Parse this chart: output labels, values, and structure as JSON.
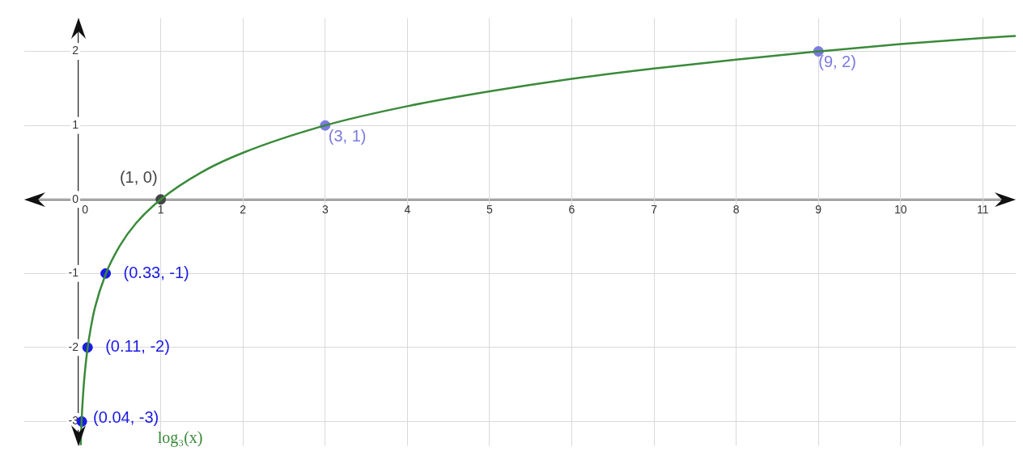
{
  "chart_data": {
    "type": "line",
    "xlim": [
      -0.66,
      11.4
    ],
    "ylim": [
      -3.33,
      2.45
    ],
    "xticks": [
      0,
      1,
      2,
      3,
      4,
      5,
      6,
      7,
      8,
      9,
      10,
      11
    ],
    "yticks": [
      -3,
      -2,
      -1,
      0,
      1,
      2
    ],
    "grid": true,
    "legend": false,
    "series": [
      {
        "name": "log₃(x)",
        "color": "#3a8a3a",
        "marker": "none",
        "x": [
          0.026,
          0.04,
          0.06,
          0.08,
          0.11,
          0.15,
          0.2,
          0.33,
          0.5,
          0.7,
          1,
          1.5,
          2,
          3,
          4,
          5,
          6,
          7,
          8,
          9,
          10,
          11,
          11.4
        ],
        "values": [
          -3.32,
          -2.93,
          -2.56,
          -2.3,
          -2.01,
          -1.73,
          -1.46,
          -1.01,
          -0.63,
          -0.32,
          0,
          0.37,
          0.63,
          1,
          1.26,
          1.46,
          1.63,
          1.77,
          1.89,
          2,
          2.1,
          2.18,
          2.21
        ]
      },
      {
        "type": "scatter",
        "marker": "circle",
        "colors": [
          "#1a1ae6",
          "#1a1ae6",
          "#1a1ae6",
          "#444444",
          "#7b7be0",
          "#7b7be0"
        ],
        "x": [
          0.04,
          0.11,
          0.33,
          1,
          3,
          9
        ],
        "values": [
          -3,
          -2,
          -1,
          0,
          1,
          2
        ]
      }
    ],
    "annotations": [
      {
        "text": "(0.04, -3)",
        "x": 0.04,
        "y": -3
      },
      {
        "text": "(0.11, -2)",
        "x": 0.11,
        "y": -2
      },
      {
        "text": "(0.33, -1)",
        "x": 0.33,
        "y": -1
      },
      {
        "text": "(1, 0)",
        "x": 1,
        "y": 0
      },
      {
        "text": "(3, 1)",
        "x": 3,
        "y": 1
      },
      {
        "text": "(9, 2)",
        "x": 9,
        "y": 2
      }
    ]
  }
}
